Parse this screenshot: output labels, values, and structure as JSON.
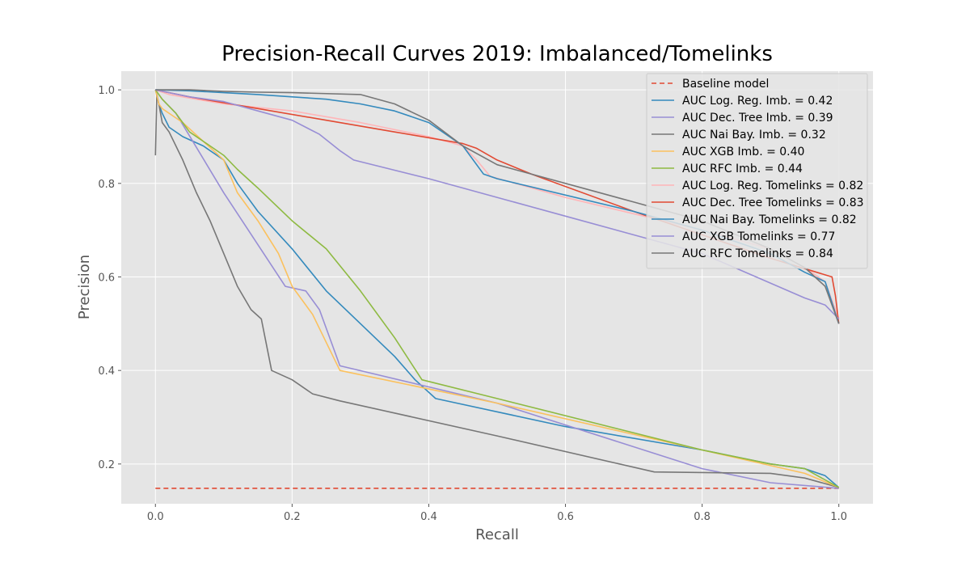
{
  "chart_data": {
    "type": "line",
    "title": "Precision-Recall Curves 2019: Imbalanced/Tomelinks",
    "xlabel": "Recall",
    "ylabel": "Precision",
    "xlim": [
      -0.05,
      1.05
    ],
    "ylim": [
      0.115,
      1.04
    ],
    "xticks": [
      "0.0",
      "0.2",
      "0.4",
      "0.6",
      "0.8",
      "1.0"
    ],
    "yticks": [
      "0.2",
      "0.4",
      "0.6",
      "0.8",
      "1.0"
    ],
    "grid": true,
    "legend_position": "top-right",
    "series": [
      {
        "name": "Baseline model",
        "color": "#E24A33",
        "dash": true,
        "x": [
          0,
          1
        ],
        "y": [
          0.148,
          0.148
        ]
      },
      {
        "name": "AUC Log. Reg. Imb. = 0.42",
        "color": "#348ABD",
        "x": [
          0.0,
          0.005,
          0.01,
          0.02,
          0.04,
          0.07,
          0.1,
          0.12,
          0.15,
          0.2,
          0.25,
          0.3,
          0.35,
          0.38,
          0.41,
          0.6,
          0.8,
          0.9,
          0.95,
          0.98,
          1.0
        ],
        "y": [
          1.0,
          0.97,
          0.95,
          0.92,
          0.9,
          0.88,
          0.85,
          0.8,
          0.74,
          0.66,
          0.57,
          0.5,
          0.43,
          0.38,
          0.34,
          0.28,
          0.23,
          0.2,
          0.19,
          0.175,
          0.15
        ]
      },
      {
        "name": "AUC Dec. Tree Imb. = 0.39",
        "color": "#988ED5",
        "x": [
          0.0,
          0.01,
          0.03,
          0.1,
          0.19,
          0.22,
          0.24,
          0.27,
          0.5,
          0.8,
          0.9,
          1.0
        ],
        "y": [
          1.0,
          0.98,
          0.95,
          0.78,
          0.58,
          0.57,
          0.53,
          0.41,
          0.33,
          0.19,
          0.16,
          0.148
        ]
      },
      {
        "name": "AUC Nai Bay. Imb. = 0.32",
        "color": "#777777",
        "x": [
          0.0,
          0.002,
          0.005,
          0.01,
          0.02,
          0.04,
          0.06,
          0.08,
          0.1,
          0.12,
          0.14,
          0.155,
          0.17,
          0.2,
          0.23,
          0.27,
          0.5,
          0.73,
          0.9,
          0.95,
          1.0
        ],
        "y": [
          0.86,
          0.99,
          0.97,
          0.93,
          0.91,
          0.85,
          0.78,
          0.72,
          0.65,
          0.58,
          0.53,
          0.51,
          0.4,
          0.38,
          0.35,
          0.335,
          0.26,
          0.183,
          0.18,
          0.17,
          0.15
        ]
      },
      {
        "name": "AUC XGB Imb. = 0.40",
        "color": "#FBC15E",
        "x": [
          0.0,
          0.005,
          0.01,
          0.02,
          0.04,
          0.07,
          0.1,
          0.12,
          0.15,
          0.18,
          0.2,
          0.23,
          0.27,
          0.5,
          0.8,
          0.95,
          1.0
        ],
        "y": [
          1.0,
          0.97,
          0.96,
          0.95,
          0.93,
          0.89,
          0.85,
          0.78,
          0.72,
          0.65,
          0.58,
          0.52,
          0.4,
          0.33,
          0.23,
          0.18,
          0.15
        ]
      },
      {
        "name": "AUC RFC Imb. = 0.44",
        "color": "#8EBA42",
        "x": [
          0.0,
          0.01,
          0.03,
          0.05,
          0.08,
          0.1,
          0.12,
          0.15,
          0.2,
          0.25,
          0.3,
          0.35,
          0.39,
          0.5,
          0.8,
          0.9,
          0.95,
          1.0
        ],
        "y": [
          1.0,
          0.98,
          0.95,
          0.91,
          0.88,
          0.86,
          0.83,
          0.79,
          0.72,
          0.66,
          0.57,
          0.47,
          0.38,
          0.34,
          0.23,
          0.2,
          0.19,
          0.15
        ]
      },
      {
        "name": "AUC Log. Reg. Tomelinks = 0.82",
        "color": "#FFB5B8",
        "x": [
          0.0,
          0.02,
          0.1,
          0.2,
          0.3,
          0.4,
          0.45,
          0.47,
          0.49,
          0.6,
          0.8,
          0.9,
          0.95,
          0.98,
          1.0
        ],
        "y": [
          1.0,
          0.99,
          0.97,
          0.955,
          0.93,
          0.9,
          0.88,
          0.85,
          0.815,
          0.77,
          0.7,
          0.66,
          0.62,
          0.59,
          0.51
        ]
      },
      {
        "name": "AUC Dec. Tree Tomelinks = 0.83",
        "color": "#E24A33",
        "x": [
          0.0,
          0.05,
          0.15,
          0.25,
          0.35,
          0.45,
          0.47,
          0.5,
          0.55,
          0.7,
          0.8,
          0.9,
          0.99,
          0.995,
          1.0
        ],
        "y": [
          1.0,
          0.985,
          0.96,
          0.935,
          0.91,
          0.885,
          0.875,
          0.85,
          0.82,
          0.74,
          0.69,
          0.64,
          0.6,
          0.56,
          0.5
        ]
      },
      {
        "name": "AUC Nai Bay. Tomelinks = 0.82",
        "color": "#348ABD",
        "x": [
          0.0,
          0.05,
          0.15,
          0.25,
          0.3,
          0.35,
          0.4,
          0.45,
          0.48,
          0.5,
          0.7,
          0.8,
          0.9,
          0.95,
          0.98,
          1.0
        ],
        "y": [
          1.0,
          0.998,
          0.99,
          0.98,
          0.97,
          0.955,
          0.93,
          0.88,
          0.82,
          0.81,
          0.74,
          0.7,
          0.65,
          0.61,
          0.59,
          0.5
        ]
      },
      {
        "name": "AUC XGB Tomelinks = 0.77",
        "color": "#988ED5",
        "x": [
          0.0,
          0.05,
          0.1,
          0.15,
          0.2,
          0.24,
          0.27,
          0.29,
          0.4,
          0.6,
          0.8,
          0.95,
          0.98,
          1.0
        ],
        "y": [
          1.0,
          0.985,
          0.975,
          0.955,
          0.935,
          0.905,
          0.87,
          0.85,
          0.81,
          0.73,
          0.65,
          0.555,
          0.54,
          0.51
        ]
      },
      {
        "name": "AUC RFC Tomelinks = 0.84",
        "color": "#777777",
        "x": [
          0.0,
          0.05,
          0.1,
          0.15,
          0.2,
          0.3,
          0.35,
          0.4,
          0.45,
          0.5,
          0.7,
          0.8,
          0.9,
          0.95,
          0.98,
          1.0
        ],
        "y": [
          1.0,
          1.0,
          0.997,
          0.995,
          0.994,
          0.99,
          0.97,
          0.935,
          0.88,
          0.84,
          0.76,
          0.72,
          0.66,
          0.62,
          0.58,
          0.5
        ]
      }
    ]
  }
}
